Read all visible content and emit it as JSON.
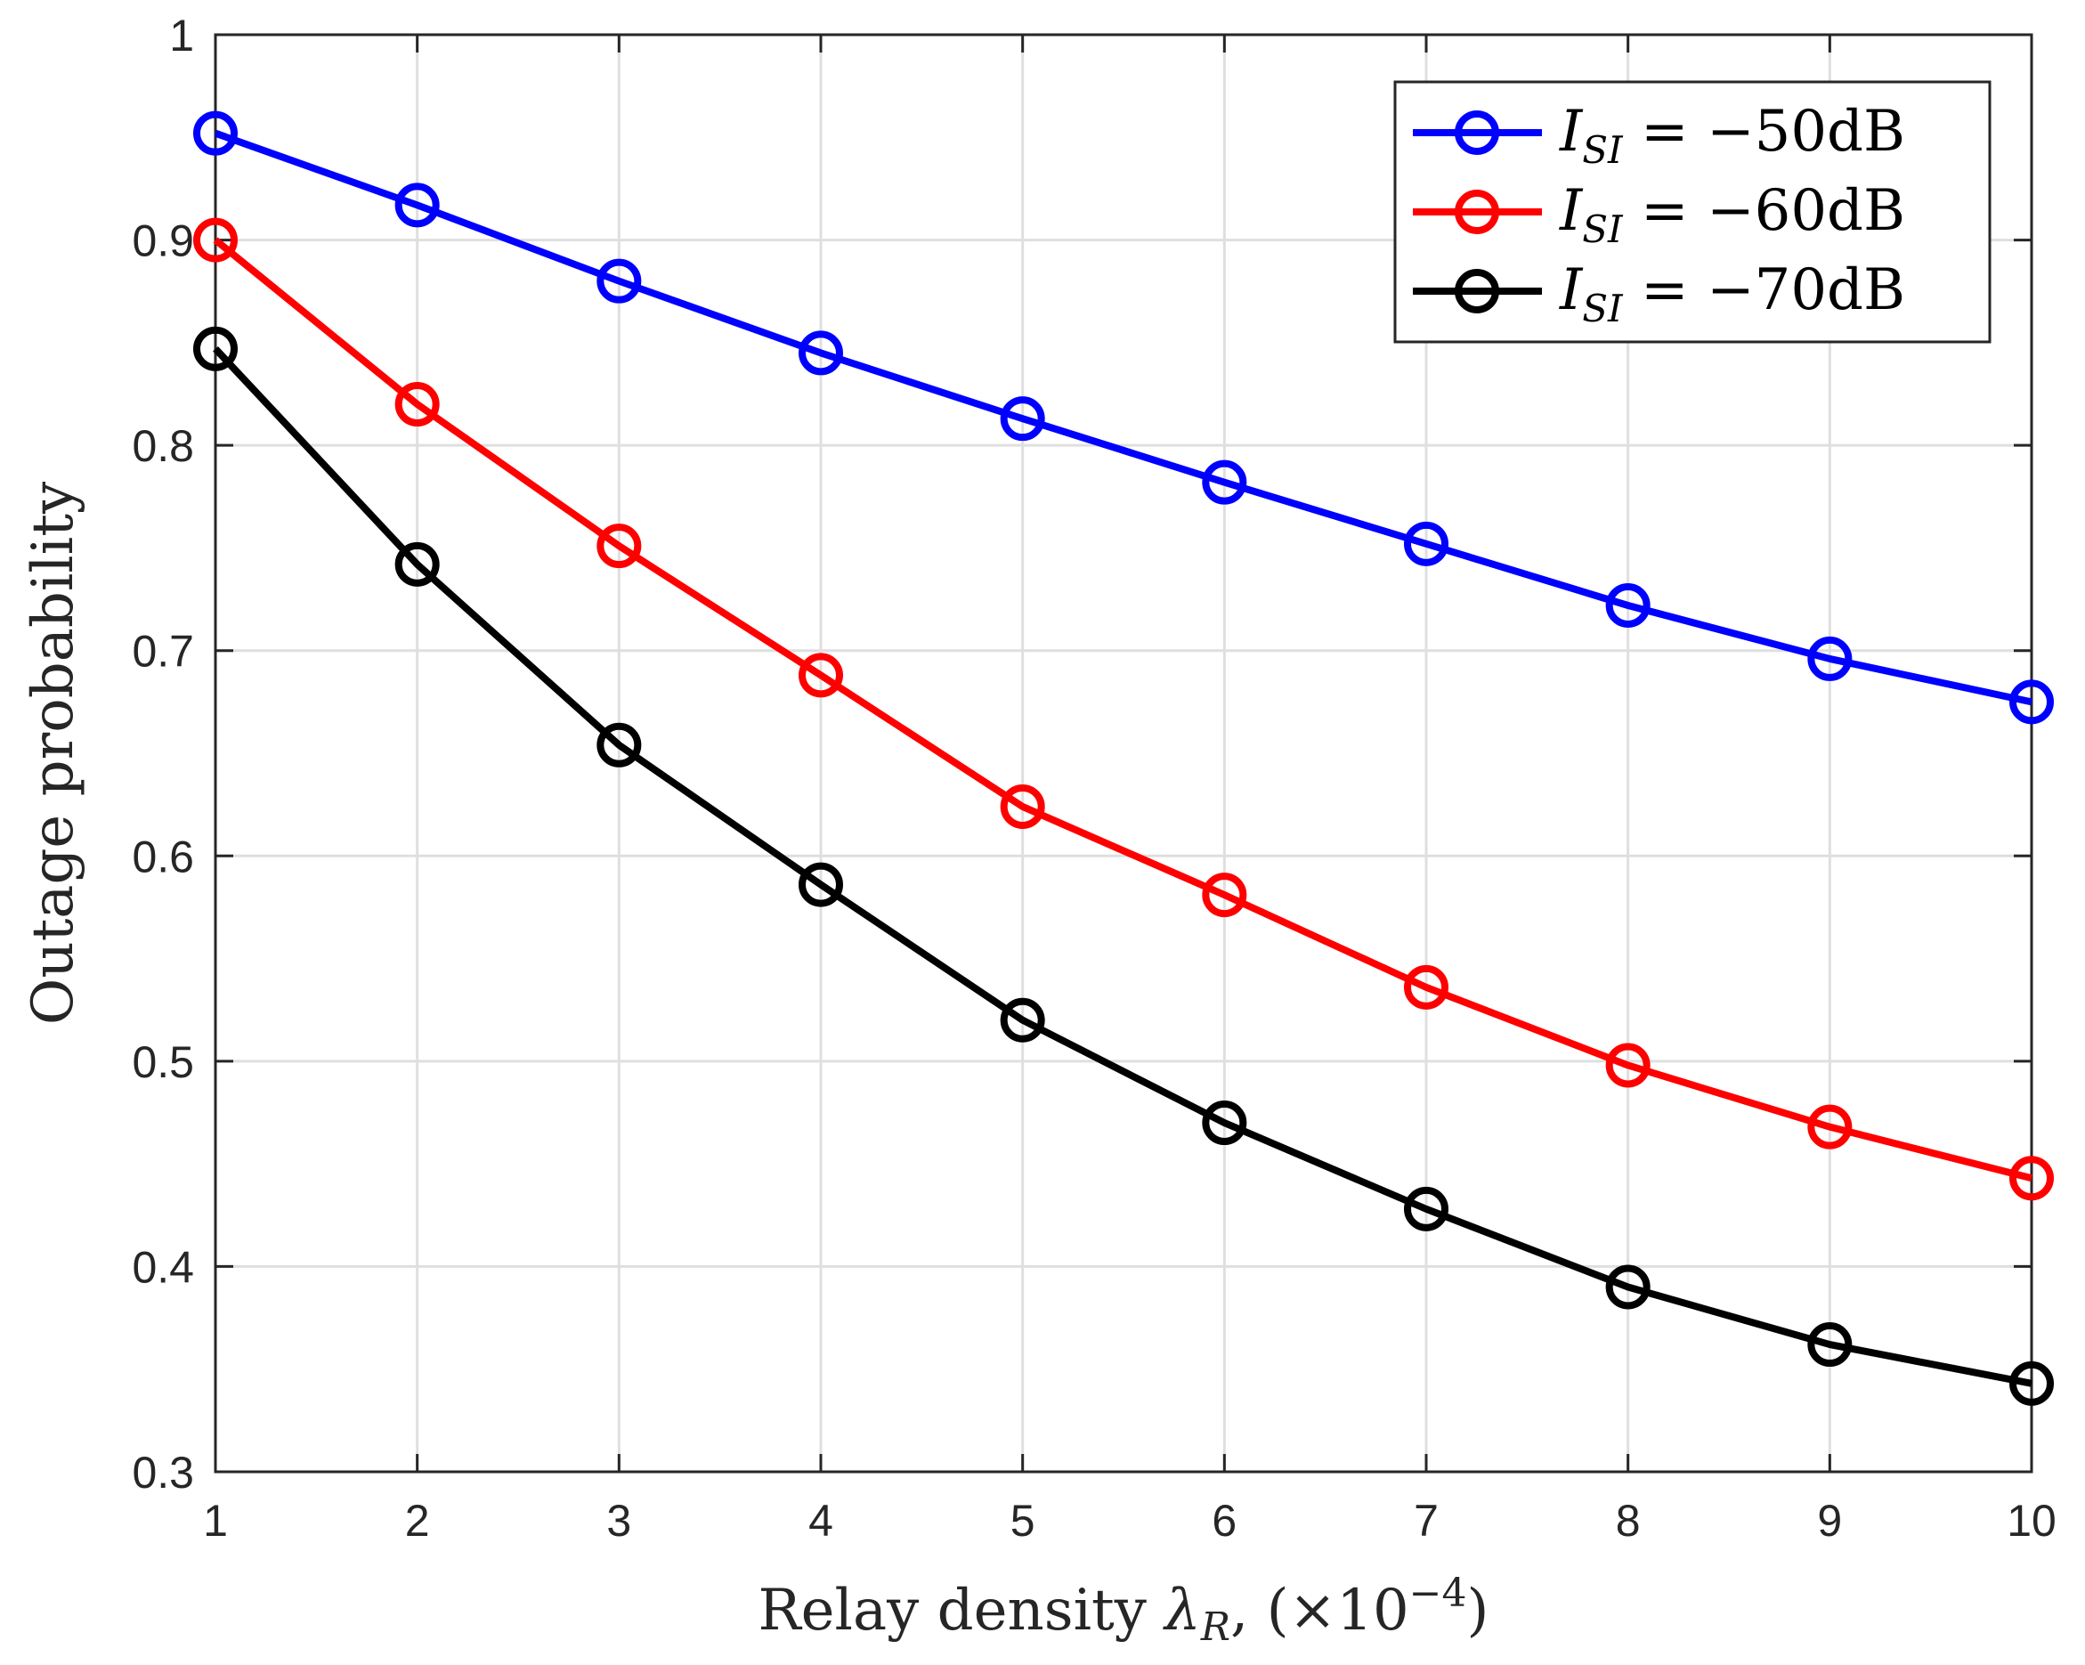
{
  "chart_data": {
    "type": "line",
    "title": "",
    "xlabel": {
      "prefix": "Relay density ",
      "symbol": "λ",
      "symbol_sub": "R",
      "suffix": ", (×10",
      "exponent": "−4",
      "close": ")"
    },
    "ylabel": "Outage probability",
    "xlim": [
      1,
      10
    ],
    "ylim": [
      0.3,
      1
    ],
    "x_ticks": [
      1,
      2,
      3,
      4,
      5,
      6,
      7,
      8,
      9,
      10
    ],
    "x_tick_labels": [
      "1",
      "2",
      "3",
      "4",
      "5",
      "6",
      "7",
      "8",
      "9",
      "10"
    ],
    "y_ticks": [
      0.3,
      0.4,
      0.5,
      0.6,
      0.7,
      0.8,
      0.9,
      1
    ],
    "y_tick_labels": [
      "0.3",
      "0.4",
      "0.5",
      "0.6",
      "0.7",
      "0.8",
      "0.9",
      "1"
    ],
    "grid": true,
    "legend_position": "top-right",
    "x": [
      1,
      2,
      3,
      4,
      5,
      6,
      7,
      8,
      9,
      10
    ],
    "series": [
      {
        "name": "I_SI = −50dB",
        "label_main": "I",
        "label_sub": "SI",
        "label_value": " = −50dB",
        "color": "#0000ff",
        "marker": "circle",
        "values": [
          0.952,
          0.917,
          0.88,
          0.845,
          0.813,
          0.782,
          0.752,
          0.722,
          0.696,
          0.675
        ]
      },
      {
        "name": "I_SI = −60dB",
        "label_main": "I",
        "label_sub": "SI",
        "label_value": " = −60dB",
        "color": "#ff0000",
        "marker": "circle",
        "values": [
          0.9,
          0.82,
          0.751,
          0.688,
          0.624,
          0.581,
          0.536,
          0.498,
          0.468,
          0.443
        ]
      },
      {
        "name": "I_SI = −70dB",
        "label_main": "I",
        "label_sub": "SI",
        "label_value": " = −70dB",
        "color": "#000000",
        "marker": "circle",
        "values": [
          0.847,
          0.742,
          0.654,
          0.586,
          0.52,
          0.47,
          0.428,
          0.39,
          0.362,
          0.343
        ]
      }
    ]
  }
}
